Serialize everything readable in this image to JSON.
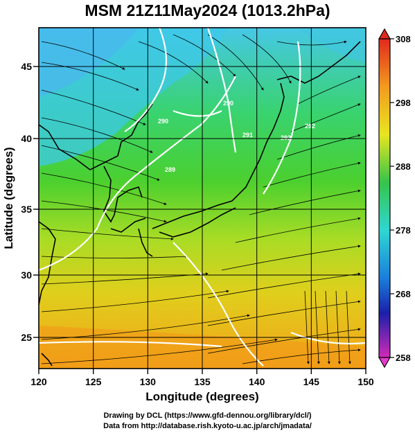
{
  "title": "MSM 21Z11May2024 (1013.2hPa)",
  "xlabel": "Longitude (degrees)",
  "ylabel": "Latitude  (degrees)",
  "x_ticks": [
    "120",
    "125",
    "130",
    "135",
    "140",
    "145",
    "150"
  ],
  "y_ticks": [
    "25",
    "30",
    "35",
    "40",
    "45"
  ],
  "colorbar_ticks": [
    "308",
    "298",
    "288",
    "278",
    "268",
    "258"
  ],
  "contour_labels": [
    "290",
    "290",
    "289",
    "291",
    "292",
    "292"
  ],
  "credits": {
    "line1": "Drawing by DCL (https://www.gfd-dennou.org/library/dcl/)",
    "line2": "Data from http://database.rish.kyoto-u.ac.jp/arch/jmadata/"
  },
  "chart_data": {
    "type": "heatmap",
    "xlim": [
      120,
      150
    ],
    "ylim": [
      22.5,
      48
    ],
    "colorbar_range": [
      258,
      308
    ],
    "overlay": "streamlines and white contours"
  }
}
